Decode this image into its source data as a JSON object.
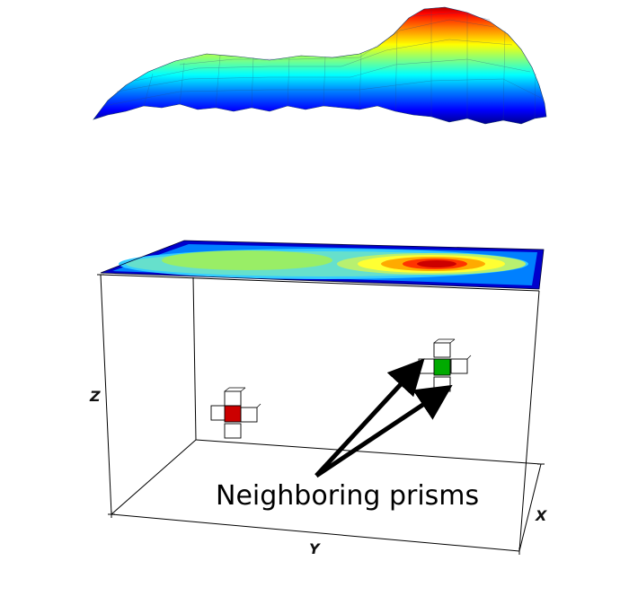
{
  "axes": {
    "x_label": "X",
    "y_label": "Y",
    "z_label": "Z"
  },
  "annotation": {
    "text": "Neighboring prisms",
    "arrow_color": "#000000"
  },
  "colormap": [
    "#00008f",
    "#0000ff",
    "#0080ff",
    "#00ffff",
    "#80ff80",
    "#ffff00",
    "#ff8000",
    "#ff0000",
    "#800000"
  ],
  "prisms": {
    "left_center_color": "#cc0000",
    "right_center_color": "#00aa00"
  }
}
